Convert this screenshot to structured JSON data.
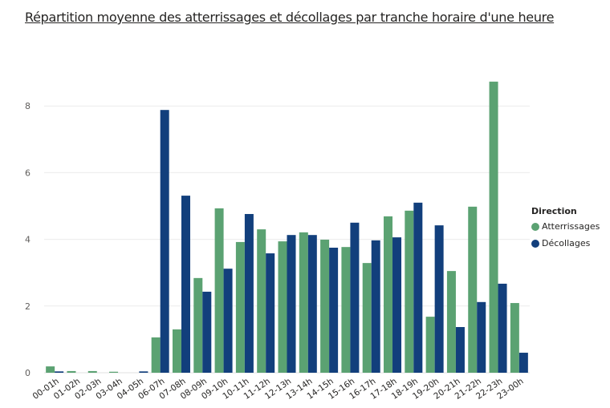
{
  "chart_data": {
    "type": "bar",
    "title": "Répartition moyenne des atterrissages et décollages par tranche horaire d'une heure",
    "xlabel": "",
    "ylabel": "",
    "ylim": [
      0,
      9
    ],
    "yticks": [
      0,
      2,
      4,
      6,
      8
    ],
    "grid": true,
    "legend_title": "Direction",
    "legend_position": "right",
    "categories": [
      "00-01h",
      "01-02h",
      "02-03h",
      "03-04h",
      "04-05h",
      "06-07h",
      "07-08h",
      "08-09h",
      "09-10h",
      "10-11h",
      "11-12h",
      "12-13h",
      "13-14h",
      "14-15h",
      "15-16h",
      "16-17h",
      "17-18h",
      "18-19h",
      "19-20h",
      "20-21h",
      "21-22h",
      "22-23h",
      "23-00h"
    ],
    "series": [
      {
        "name": "Atterrissages",
        "color": "#5BA272",
        "values": [
          0.19,
          0.05,
          0.05,
          0.03,
          0,
          1.06,
          1.3,
          2.84,
          4.93,
          3.92,
          4.3,
          3.94,
          4.21,
          3.99,
          3.77,
          3.29,
          4.69,
          4.86,
          1.68,
          3.05,
          4.98,
          8.73,
          2.09
        ]
      },
      {
        "name": "Décollages",
        "color": "#123F7C",
        "values": [
          0.04,
          0,
          0,
          0,
          0.04,
          7.88,
          5.31,
          2.43,
          3.12,
          4.76,
          3.58,
          4.13,
          4.13,
          3.75,
          4.5,
          3.97,
          4.06,
          5.1,
          4.42,
          1.37,
          2.12,
          2.67,
          0.6
        ]
      }
    ]
  }
}
